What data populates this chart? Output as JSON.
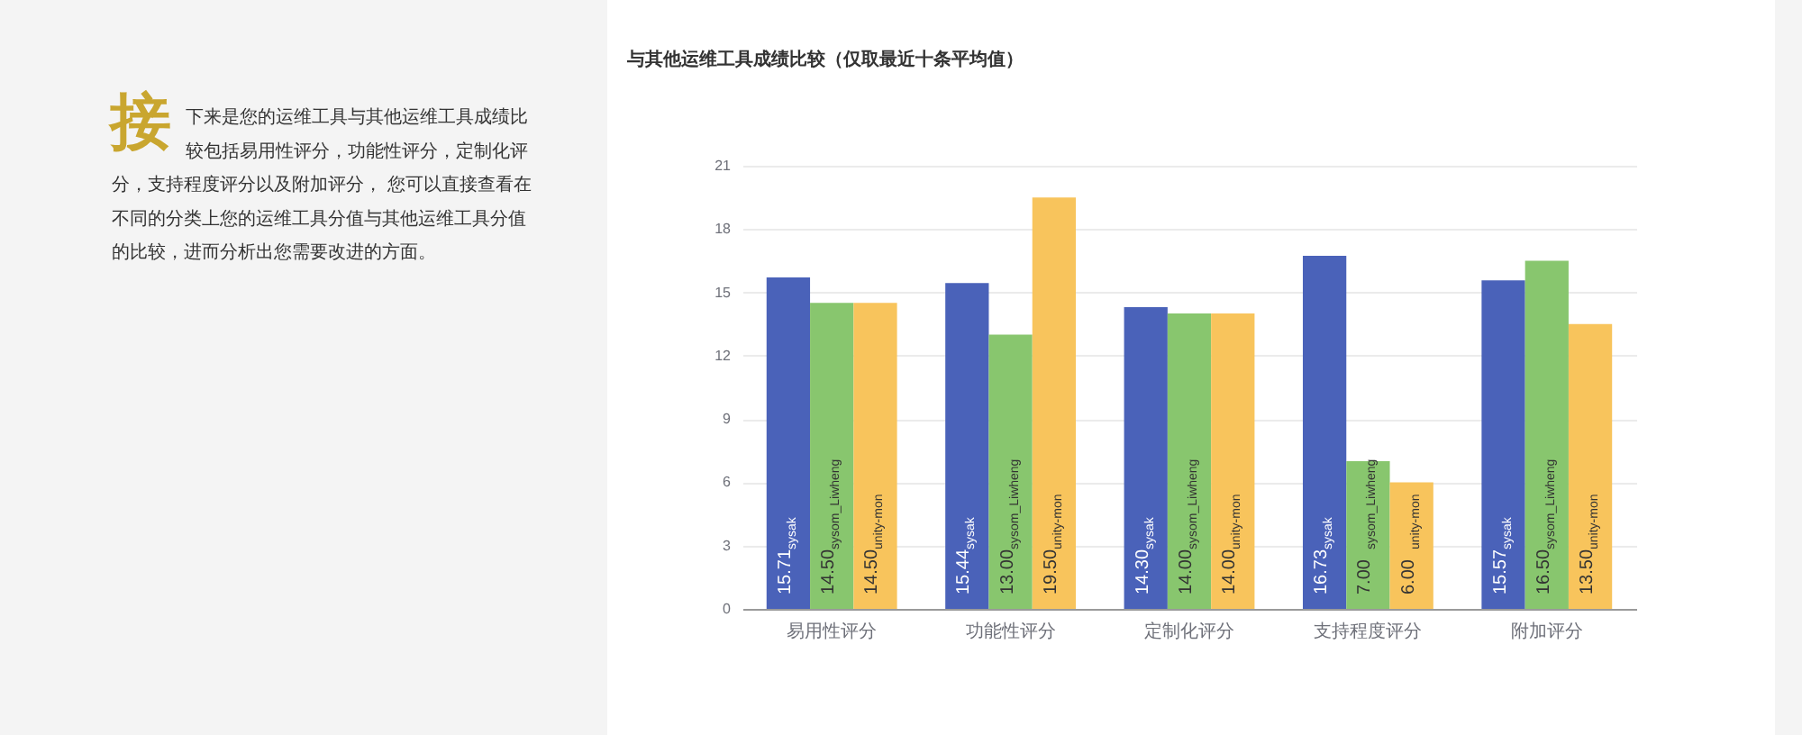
{
  "chart_data": {
    "type": "bar",
    "title": "与其他运维工具成绩比较（仅取最近十条平均值）",
    "categories": [
      "易用性评分",
      "功能性评分",
      "定制化评分",
      "支持程度评分",
      "附加评分"
    ],
    "series": [
      {
        "name": "sysak",
        "color": "#4a62b9",
        "values": [
          15.71,
          15.44,
          14.3,
          16.73,
          15.57
        ],
        "value_labels": [
          "15.71",
          "15.44",
          "14.30",
          "16.73",
          "15.57"
        ]
      },
      {
        "name": "sysom_Liwheng",
        "color": "#88c66e",
        "values": [
          14.5,
          13.0,
          14.0,
          7.0,
          16.5
        ],
        "value_labels": [
          "14.50",
          "13.00",
          "14.00",
          "7.00",
          "16.50"
        ]
      },
      {
        "name": "unity-mon",
        "color": "#f8c45c",
        "values": [
          14.5,
          19.5,
          14.0,
          6.0,
          13.5
        ],
        "value_labels": [
          "14.50",
          "19.50",
          "14.00",
          "6.00",
          "13.50"
        ]
      }
    ],
    "ylim": [
      0,
      21
    ],
    "yticks": [
      0,
      3,
      6,
      9,
      12,
      15,
      18,
      21
    ],
    "grid": "y",
    "legend": false,
    "annotations": [
      "接下来是您的运维工具与其他运维工具成绩比较包括易用性评分，功能性评分，定制化评分，支持程度评分以及附加评分， 您可以直接查看在不同的分类上您的运维工具分值与其他运维工具分值的比较，进而分析出您需要改进的方面。"
    ]
  }
}
